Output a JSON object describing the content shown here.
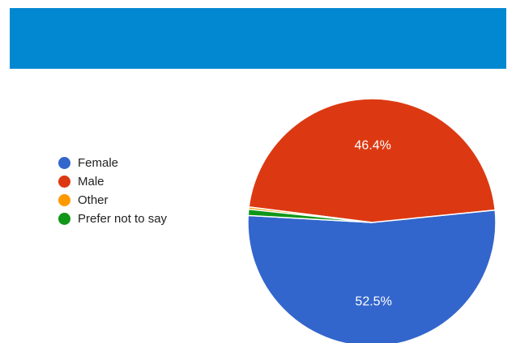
{
  "header": {
    "banner_color": "#0288d1"
  },
  "chart_data": {
    "type": "pie",
    "legend_position": "left",
    "slices": [
      {
        "label": "Female",
        "value": 52.5,
        "display": "52.5%",
        "color": "#3366cc"
      },
      {
        "label": "Male",
        "value": 46.4,
        "display": "46.4%",
        "color": "#dc3912"
      },
      {
        "label": "Other",
        "value": 0.3,
        "display": "",
        "color": "#ff9900"
      },
      {
        "label": "Prefer not to say",
        "value": 0.8,
        "display": "",
        "color": "#109618"
      }
    ]
  }
}
